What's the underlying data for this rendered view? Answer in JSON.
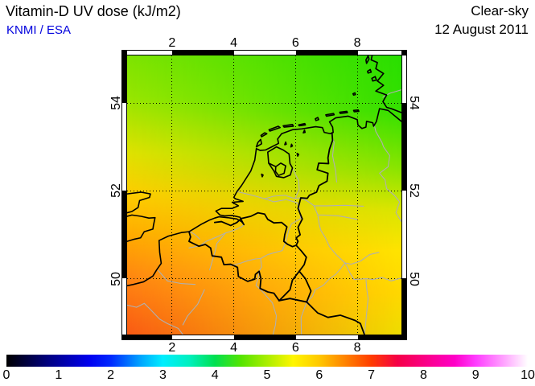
{
  "header": {
    "title": "Vitamin-D UV dose (kJ/m2)",
    "credit": "KNMI / ESA",
    "credit_color": "#0000dd",
    "condition": "Clear-sky",
    "date": "12 August 2011"
  },
  "map": {
    "bounds": {
      "lon_min": 0.545,
      "lon_max": 9.43,
      "lat_min": 48.73,
      "lat_max": 55.08
    },
    "lon_ticks": [
      "2",
      "4",
      "6",
      "8"
    ],
    "lat_ticks": [
      "54",
      "52",
      "50"
    ],
    "field": {
      "west_profile": [
        {
          "p": 0,
          "c": "#7ee402"
        },
        {
          "p": 15,
          "c": "#97e600"
        },
        {
          "p": 35,
          "c": "#e0e200"
        },
        {
          "p": 50,
          "c": "#ffcc00"
        },
        {
          "p": 63,
          "c": "#ffae00"
        },
        {
          "p": 80,
          "c": "#ff8512"
        },
        {
          "p": 100,
          "c": "#fa5a14"
        }
      ],
      "east_profile": [
        {
          "p": 0,
          "c": "#28de00"
        },
        {
          "p": 20,
          "c": "#34e000"
        },
        {
          "p": 40,
          "c": "#86e400"
        },
        {
          "p": 55,
          "c": "#d8e600"
        },
        {
          "p": 70,
          "c": "#ffe400"
        },
        {
          "p": 85,
          "c": "#ffd800"
        },
        {
          "p": 100,
          "c": "#eedd00"
        }
      ]
    },
    "layers": [
      {
        "name": "rivers",
        "color": "#b0b0b0",
        "width": 1.1,
        "paths": [
          "M 8.23,-48.73 L 8.26,-48.9 L 8.3,-49.2 L 8.35,-49.55 L 8.3,-49.8 L 8.28,-50.0 L 7.9,-49.98 L 7.77,-50.12 L 7.6,-50.36 L 7.3,-50.56 L 7.1,-50.73 L 6.96,-50.94 L 6.82,-51.1 L 6.77,-51.23 L 6.72,-51.45 L 6.6,-51.66 L 6.4,-51.76 L 6.17,-51.84 L 5.95,-51.83 L 5.65,-51.9 L 5.3,-51.88 L 5.0,-51.82 L 4.7,-51.88 L 4.48,-51.92 L 4.12,-51.98",
          "M 6.0,-51.85 L 6.12,-52.03 L 6.1,-52.23 L 5.98,-52.4 L 5.9,-52.52",
          "M 6.19,-48.73 L 6.18,-49.12 L 6.3,-49.35 L 6.37,-49.47 L 6.55,-49.6 L 6.64,-49.75 L 6.9,-49.85 L 7.1,-50.0 L 7.3,-50.1 L 7.45,-50.22 L 7.6,-50.36",
          "M 5.27,-48.73 L 5.35,-48.95 L 5.38,-49.16 L 5.25,-49.45 L 4.94,-49.7 L 4.72,-49.85 L 4.8,-50.05 L 4.82,-50.17 L 4.9,-50.27 L 4.87,-50.46 L 5.1,-50.55 L 5.35,-50.6 L 5.57,-50.64 L 5.69,-50.85 L 5.78,-51.1 L 5.87,-51.25 L 6.17,-51.37 L 6.12,-51.6 L 6.05,-51.73 L 5.7,-51.8 L 5.3,-51.75 L 5.0,-51.82",
          "M 3.22,-50.2 L 3.3,-50.4 L 3.39,-50.61 L 3.45,-50.8 L 3.73,-51.04 L 4.0,-51.1 L 4.25,-51.18 L 4.33,-51.23",
          "M 2.55,-50.7 L 2.9,-50.75 L 3.1,-50.85 L 3.45,-50.95 L 3.73,-51.04",
          "M 3.9,-50.3 L 4.2,-50.35 L 4.45,-50.41 L 4.7,-50.45 L 4.87,-50.46",
          "M 1.55,-50.19 L 1.85,-49.95 L 2.3,-49.89 L 2.75,-49.87",
          "M 0.545,-49.4 L 0.85,-49.35 L 1.1,-49.44 L 1.3,-49.3 L 1.6,-49.08 L 1.85,-48.98 L 2.2,-48.87 L 2.35,-48.73",
          "M 3.05,-49.75 L 2.83,-49.42 L 2.5,-49.15 L 2.35,-48.95",
          "M 7.33,-52.2 L 7.3,-52.45 L 7.2,-52.8 L 7.25,-53.1 L 7.15,-53.31",
          "M 9.43,-51.3 L 9.25,-51.5 L 9.37,-51.75 L 9.2,-51.9 L 8.95,-52.05 L 8.9,-52.25 L 8.72,-52.4 L 9.0,-52.55 L 9.05,-52.8 L 8.85,-53.0 L 8.8,-53.1 L 8.6,-53.35 L 8.55,-53.5",
          "M 9.43,-50.02 L 9.1,-49.95 L 8.8,-50.03 L 8.5,-49.98 L 8.3,-50.0",
          "M 8.7,-50.6 L 8.4,-50.55 L 8.1,-50.4 L 7.8,-50.33 L 7.6,-50.36",
          "M 8.2,-51.65 L 7.6,-51.67 L 7.0,-51.66 L 6.6,-51.66",
          "M 8.0,-51.35 L 7.4,-51.43 L 6.9,-51.45 L 6.72,-51.45",
          "M 9.43,-54.3 L 9.05,-54.22 L 8.83,-54.13",
          "M 2.55,-51.09 L 2.75,-51.0 L 2.9,-50.9"
        ]
      },
      {
        "name": "borders",
        "color": "#000000",
        "width": 1.8,
        "paths": [
          "M 2.55,-51.07 L 2.6,-50.95 L 2.55,-50.85 L 2.87,-50.74 L 3.08,-50.78 L 3.25,-50.7 L 3.3,-50.52 L 3.6,-50.49 L 3.68,-50.32 L 3.9,-50.33 L 4.12,-50.26 L 4.15,-50.05 L 4.45,-49.94 L 4.68,-49.99 L 4.7,-50.1 L 4.82,-50.17 L 4.88,-50.0 L 4.85,-49.78 L 5.1,-49.7 L 5.3,-49.67 L 5.47,-49.5",
          "M 5.47,-49.5 L 5.82,-49.55 L 6.36,-49.47 L 6.5,-49.72 L 6.32,-50.0 L 6.12,-50.17 L 5.9,-49.97 L 5.82,-49.75 Z",
          "M 6.36,-49.47 L 6.72,-49.22 L 7.05,-49.12 L 7.45,-49.17 L 7.93,-49.05 L 8.1,-48.98 L 8.23,-48.73",
          "M 6.12,-50.17 L 6.28,-50.32 L 6.35,-50.49 L 6.19,-50.63 L 6.02,-50.76",
          "M 3.38,-51.28 L 3.6,-51.3 L 3.9,-51.21 L 4.1,-51.28 L 4.24,-51.37 L 4.55,-51.42 L 4.78,-51.5 L 5.0,-51.47 L 5.1,-51.35 L 5.3,-51.27 L 5.55,-51.28 L 5.72,-51.18 L 5.65,-51.0 L 5.62,-50.85 L 5.75,-50.78 L 5.9,-50.73 L 6.02,-50.76",
          "M 7.18,-53.32 L 7.2,-53.15 L 7.1,-52.95 L 7.05,-52.75 L 7.07,-52.62 L 6.75,-52.63 L 6.7,-52.48 L 7.05,-52.4 L 7.02,-52.22 L 6.76,-52.12 L 6.68,-51.97 L 6.45,-51.9 L 6.38,-51.83 L 6.17,-51.84 L 6.08,-51.6 L 6.22,-51.36 L 6.08,-51.17 L 6.15,-51.0 L 6.02,-50.93 L 6.08,-50.85 L 6.02,-50.76"
        ]
      },
      {
        "name": "coast",
        "color": "#000000",
        "width": 1.6,
        "paths": [
          "M 0.545,-51.93 L 1.0,-51.97 L 1.3,-51.93 L 1.27,-51.85 L 0.95,-51.78 L 0.9,-51.62 L 0.7,-51.53 L 0.545,-51.5",
          "M 0.545,-51.42 L 0.7,-51.45 L 1.0,-51.42 L 1.25,-51.38 L 1.45,-51.39 L 1.4,-51.22 L 1.38,-51.13 L 1.1,-51.07 L 0.98,-50.93 L 0.78,-50.9 L 0.545,-50.85",
          "M 0.545,-49.84 L 0.75,-49.87 L 1.08,-49.93 L 1.38,-50.06 L 1.5,-50.2 L 1.65,-50.35 L 1.6,-50.6 L 1.58,-50.87 L 1.88,-50.97 L 2.3,-51.05 L 2.55,-51.07 L 2.95,-51.24 L 3.2,-51.33 L 3.38,-51.38 L 3.52,-51.41 L 3.8,-51.39 L 4.1,-51.36 L 4.25,-51.3 L 4.33,-51.23 L 4.2,-51.4 L 3.95,-51.44 L 3.7,-51.43 L 3.55,-51.45 L 3.42,-51.54 L 3.6,-51.6 L 3.95,-51.6 L 4.15,-51.66 L 3.95,-51.74 L 4.3,-51.76 L 4.05,-51.82 L 4.0,-51.85 L 4.1,-51.98 L 4.25,-52.12 L 4.55,-52.45 L 4.68,-52.7 L 4.73,-52.96 L 4.85,-52.92 L 5.03,-52.93 L 5.45,-53.08 L 5.42,-53.18 L 5.55,-53.3 L 5.9,-53.39 L 6.2,-53.41 L 6.65,-53.46 L 6.87,-53.44 L 6.93,-53.33 L 7.13,-53.3 L 7.22,-53.33 L 7.2,-53.45 L 7.1,-53.57 L 7.3,-53.66 L 7.7,-53.7 L 8.0,-53.62 L 8.02,-53.5 L 8.15,-53.42 L 8.28,-53.45 L 8.3,-53.58 L 8.5,-53.55 L 8.53,-53.47 L 8.62,-53.58 L 8.72,-53.87 L 9.0,-53.83 L 9.43,-53.58",
          "M 9.43,-53.78 L 9.1,-53.87 L 8.95,-53.9 L 8.83,-54.03 L 8.95,-54.18 L 8.6,-54.27 L 8.85,-54.4 L 8.65,-54.5 L 8.85,-54.67 L 8.6,-54.78 L 8.65,-54.92 L 8.45,-54.98 L 8.48,-55.08",
          "M 4.73,-53.0 L 4.9,-53.07 L 4.87,-53.17 L 4.78,-53.1 Z",
          "M 4.9,-53.23 L 5.07,-53.3 L 5.0,-53.32 L 4.88,-53.26 Z",
          "M 5.17,-53.36 L 5.5,-53.44 L 5.44,-53.47 L 5.14,-53.39 Z",
          "M 5.63,-53.45 L 5.93,-53.47 L 5.9,-53.51 L 5.6,-53.48 Z",
          "M 6.12,-53.48 L 6.32,-53.5 L 6.3,-53.53 L 6.1,-53.5 Z",
          "M 6.66,-53.6 L 6.75,-53.62 L 6.72,-53.67 L 6.64,-53.64 Z",
          "M 7.0,-53.7 L 7.25,-53.73 L 7.23,-53.76 L 6.98,-53.73 Z",
          "M 7.45,-53.76 L 7.68,-53.78 L 7.66,-53.81 L 7.43,-53.79 Z",
          "M 7.9,-53.8 L 8.05,-53.81 L 8.03,-53.84 L 7.88,-53.83 Z",
          "M 7.88,-54.18 L 7.94,-54.19 L 7.92,-54.23 L 7.86,-54.21 Z",
          "M 8.3,-54.9 L 8.38,-55.0 L 8.35,-55.07 L 8.28,-54.98 Z",
          "M 8.5,-54.5 L 8.62,-54.52 L 8.58,-54.6 L 8.47,-54.56 Z",
          "M 8.35,-54.68 L 8.45,-54.7 L 8.42,-54.76 L 8.33,-54.72 Z",
          "M 5.1,-52.88 L 5.38,-53.0 L 5.6,-52.93 L 5.79,-52.84 L 5.82,-52.62 L 5.9,-52.52 L 5.83,-52.36 L 5.62,-52.3 L 5.38,-52.33 L 5.3,-52.45 L 5.13,-52.63 Z",
          "M 5.36,-52.55 L 5.52,-52.63 L 5.68,-52.57 L 5.63,-52.4 L 5.45,-52.35 L 5.35,-52.44 Z",
          "M 5.13,-52.63 L 5.36,-52.55",
          "M 5.65,-53.05 l 0.05,-0.01 l -0.02,-0.05 Z",
          "M 5.85,-53.0 l 0.05,-0.02 l -0.03,-0.04 Z",
          "M 6.25,-53.32 l 0.06,-0.01 l -0.02,-0.05 Z",
          "M 4.9,-52.38 l 0.05,0.02 l -0.03,0.04 Z",
          "M 6.05,-52.85 l 0.05,0.02 l -0.03,0.04 Z"
        ]
      }
    ]
  },
  "colorbar": {
    "min": 0,
    "max": 10,
    "tick_labels": [
      "0",
      "1",
      "2",
      "3",
      "4",
      "5",
      "6",
      "7",
      "8",
      "9",
      "10"
    ],
    "stops": [
      {
        "v": 0.0,
        "c": "#000000"
      },
      {
        "v": 0.8,
        "c": "#000080"
      },
      {
        "v": 1.6,
        "c": "#0000f0"
      },
      {
        "v": 2.0,
        "c": "#0028ff"
      },
      {
        "v": 2.6,
        "c": "#00aaff"
      },
      {
        "v": 3.0,
        "c": "#00eeff"
      },
      {
        "v": 3.5,
        "c": "#00f0c0"
      },
      {
        "v": 4.0,
        "c": "#00e050"
      },
      {
        "v": 4.5,
        "c": "#55e400"
      },
      {
        "v": 5.0,
        "c": "#aaee00"
      },
      {
        "v": 5.5,
        "c": "#fff600"
      },
      {
        "v": 6.0,
        "c": "#ffc800"
      },
      {
        "v": 6.5,
        "c": "#ff8200"
      },
      {
        "v": 7.0,
        "c": "#ff3c00"
      },
      {
        "v": 7.5,
        "c": "#f50046"
      },
      {
        "v": 8.0,
        "c": "#fa0082"
      },
      {
        "v": 8.6,
        "c": "#ff00c8"
      },
      {
        "v": 9.0,
        "c": "#ff3cff"
      },
      {
        "v": 9.5,
        "c": "#ff9bff"
      },
      {
        "v": 10.0,
        "c": "#ffffff"
      }
    ]
  }
}
